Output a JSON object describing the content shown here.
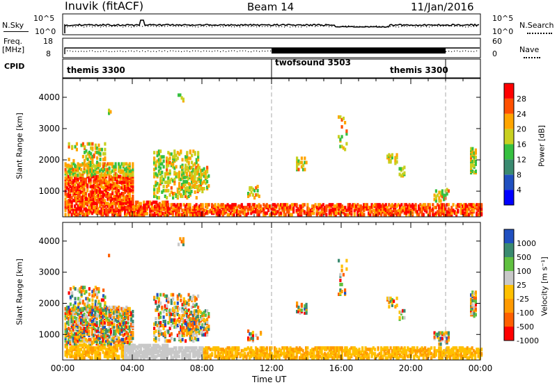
{
  "header": {
    "station": "Inuvik",
    "mode": "(fitACF)",
    "beam": "Beam 14",
    "date": "11/Jan/2016"
  },
  "summary": {
    "nsky_label": "N.Sky",
    "nsky_ticks": [
      "10^5",
      "10^0"
    ],
    "nsearch_label": "N.Search",
    "nsearch_ticks": [
      "10^5",
      "10^0"
    ],
    "freq_label": "Freq.",
    "freq_unit": "[MHz]",
    "freq_ticks": [
      "18",
      "8"
    ],
    "nave_label": "Nave",
    "nave_ticks": [
      "60",
      "0"
    ],
    "cpid_label": "CPID",
    "cpid_segments": [
      {
        "name": "themis 3300",
        "start_h": 0,
        "end_h": 12
      },
      {
        "name": "twofsound 3503",
        "start_h": 12,
        "end_h": 22
      },
      {
        "name": "themis 3300",
        "start_h": 22,
        "end_h": 24
      }
    ]
  },
  "chart_data": [
    {
      "type": "heatmap",
      "name": "power",
      "ylabel": "Slant Range [km]",
      "x_range_h": [
        0,
        24
      ],
      "ylim": [
        180,
        4600
      ],
      "yticks": [
        1000,
        2000,
        3000,
        4000
      ],
      "colorbar_label": "Power [dB]",
      "colorbar_ticks": [
        "28",
        "24",
        "20",
        "16",
        "12",
        "8",
        "4"
      ],
      "colorscale": [
        "#0000ff",
        "#2050c0",
        "#3a8a70",
        "#36c040",
        "#c8d020",
        "#ffa500",
        "#ff5000",
        "#ff0000"
      ],
      "dashed_markers_h": [
        12,
        22
      ]
    },
    {
      "type": "heatmap",
      "name": "velocity",
      "ylabel": "Slant Range [km]",
      "xlabel": "Time UT",
      "x_range_h": [
        0,
        24
      ],
      "xticks": [
        "00:00",
        "04:00",
        "08:00",
        "12:00",
        "16:00",
        "20:00",
        "00:00"
      ],
      "ylim": [
        180,
        4600
      ],
      "yticks": [
        1000,
        2000,
        3000,
        4000
      ],
      "colorbar_label": "Velocity [m s⁻¹]",
      "colorbar_ticks": [
        "1000",
        "500",
        "100",
        "25",
        "-25",
        "-100",
        "-500",
        "-1000"
      ],
      "colorscale": [
        "#ff0000",
        "#ff6000",
        "#ff9a00",
        "#ffc000",
        "#c8c8c8",
        "#60c040",
        "#3a8a70",
        "#2050c0"
      ],
      "dashed_markers_h": [
        12,
        22
      ]
    }
  ]
}
